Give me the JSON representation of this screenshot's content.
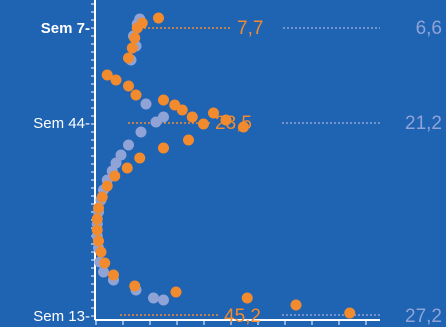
{
  "chart_data": {
    "type": "scatter",
    "title": "",
    "xlabel": "",
    "ylabel": "",
    "y_categories": [
      "Sem  7-",
      "Sem 44-",
      "Sem 13-"
    ],
    "colors": {
      "background": "#1f63b3",
      "series_a": "#f28a2e",
      "series_b": "#8fa3d6",
      "axis": "#ffffff"
    },
    "annotations": [
      {
        "label": "Sem  7-",
        "series_a_value": "7,7",
        "series_b_value": "6,6"
      },
      {
        "label": "Sem 44-",
        "series_a_value": "23,5",
        "series_b_value": "21,2"
      },
      {
        "label": "Sem 13-",
        "series_a_value": "45,2",
        "series_b_value": "27,2"
      }
    ],
    "series": [
      {
        "color": "#8fa3d6",
        "points": [
          [
            3.5,
            19
          ],
          [
            3.3,
            24
          ],
          [
            3.0,
            36
          ],
          [
            3.2,
            46
          ],
          [
            2.8,
            60
          ],
          [
            4.0,
            104
          ],
          [
            5.4,
            117
          ],
          [
            4.8,
            122
          ],
          [
            3.6,
            132
          ],
          [
            2.6,
            145
          ],
          [
            2.0,
            155
          ],
          [
            1.6,
            163
          ],
          [
            1.3,
            171
          ],
          [
            0.9,
            180
          ],
          [
            0.6,
            190
          ],
          [
            0.4,
            200
          ],
          [
            0.2,
            212
          ],
          [
            0.1,
            224
          ],
          [
            0.1,
            236
          ],
          [
            0.2,
            248
          ],
          [
            0.3,
            262
          ],
          [
            0.6,
            272
          ],
          [
            1.4,
            280
          ],
          [
            3.2,
            290
          ],
          [
            4.6,
            298
          ],
          [
            5.4,
            300
          ]
        ]
      },
      {
        "color": "#f28a2e",
        "points": [
          [
            5.0,
            18
          ],
          [
            3.7,
            23
          ],
          [
            3.3,
            28
          ],
          [
            3.1,
            38
          ],
          [
            2.9,
            48
          ],
          [
            2.6,
            58
          ],
          [
            0.9,
            75
          ],
          [
            1.6,
            80
          ],
          [
            2.6,
            86
          ],
          [
            3.2,
            95
          ],
          [
            5.4,
            100
          ],
          [
            6.3,
            105
          ],
          [
            6.9,
            110
          ],
          [
            7.7,
            117
          ],
          [
            9.4,
            113
          ],
          [
            10.4,
            120
          ],
          [
            11.8,
            127
          ],
          [
            8.6,
            124
          ],
          [
            7.4,
            140
          ],
          [
            5.4,
            148
          ],
          [
            3.5,
            158
          ],
          [
            2.5,
            168
          ],
          [
            1.5,
            176
          ],
          [
            0.9,
            186
          ],
          [
            0.5,
            197
          ],
          [
            0.2,
            208
          ],
          [
            0.1,
            219
          ],
          [
            0.1,
            230
          ],
          [
            0.2,
            241
          ],
          [
            0.4,
            252
          ],
          [
            0.7,
            263
          ],
          [
            1.4,
            275
          ],
          [
            3.1,
            286
          ],
          [
            6.4,
            292
          ],
          [
            12.1,
            298
          ],
          [
            16.0,
            305
          ],
          [
            20.3,
            313
          ]
        ]
      }
    ]
  }
}
